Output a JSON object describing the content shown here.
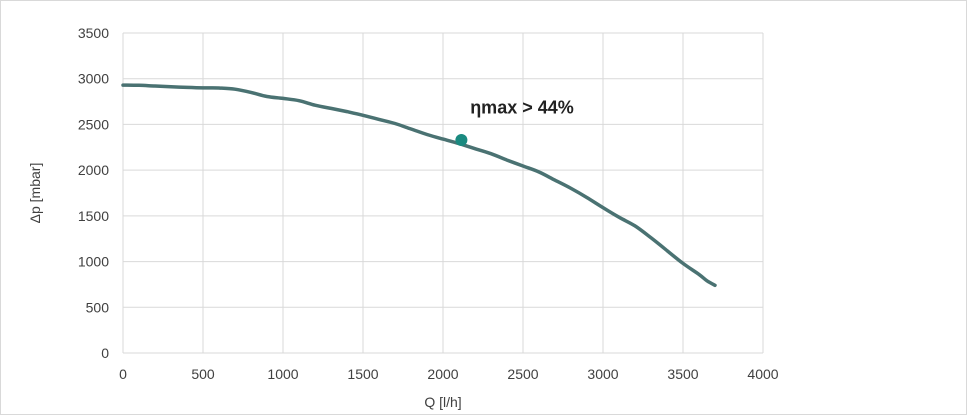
{
  "chart_data": {
    "type": "line",
    "xlabel": "Q [l/h]",
    "ylabel": "Δp  [mbar]",
    "xlim": [
      0,
      4000
    ],
    "ylim": [
      0,
      3500
    ],
    "xticks": [
      0,
      500,
      1000,
      1500,
      2000,
      2500,
      3000,
      3500,
      4000
    ],
    "yticks": [
      0,
      500,
      1000,
      1500,
      2000,
      2500,
      3000,
      3500
    ],
    "grid": true,
    "series": [
      {
        "color": "#4a7272",
        "x": [
          0,
          100,
          200,
          300,
          400,
          500,
          600,
          700,
          800,
          900,
          1000,
          1100,
          1200,
          1300,
          1400,
          1500,
          1600,
          1700,
          1800,
          1900,
          2000,
          2100,
          2200,
          2300,
          2400,
          2500,
          2600,
          2700,
          2800,
          2900,
          3000,
          3100,
          3200,
          3300,
          3400,
          3500,
          3600,
          3650,
          3700
        ],
        "y": [
          2930,
          2928,
          2920,
          2912,
          2905,
          2900,
          2898,
          2885,
          2850,
          2805,
          2785,
          2760,
          2710,
          2675,
          2640,
          2600,
          2555,
          2510,
          2450,
          2390,
          2340,
          2290,
          2235,
          2180,
          2110,
          2045,
          1980,
          1890,
          1800,
          1700,
          1590,
          1485,
          1390,
          1260,
          1120,
          980,
          860,
          790,
          740
        ]
      }
    ],
    "marker": {
      "x": 2115,
      "y": 2330,
      "color": "#1a8a80"
    },
    "annotation": {
      "text": "ηmax  > 44%",
      "x": 2170,
      "y": 2620
    }
  }
}
